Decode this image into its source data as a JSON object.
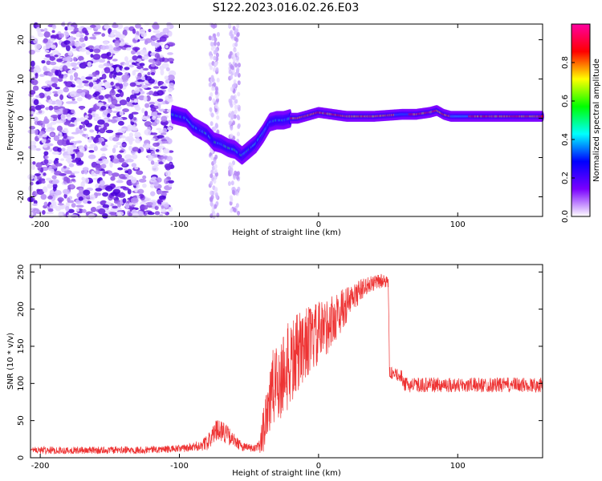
{
  "title": "S122.2023.016.02.26.E03",
  "chart_data": [
    {
      "type": "heatmap",
      "xlabel": "Height of straight line (km)",
      "ylabel": "Frequency (Hz)",
      "xlim": [
        -207,
        161
      ],
      "ylim": [
        -25,
        24
      ],
      "xticks": [
        -200,
        -100,
        0,
        100
      ],
      "yticks": [
        -20,
        -10,
        0,
        10,
        20
      ],
      "colorbar": {
        "label": "Normalized spectral amplitude",
        "range": [
          0,
          1
        ],
        "ticks": [
          0.0,
          0.2,
          0.4,
          0.6,
          0.8
        ],
        "tick_labels": [
          "0.0",
          "0.2",
          "0.4",
          "0.6",
          "0.8"
        ],
        "colors": [
          "#ffffff",
          "#7a00ff",
          "#0000ff",
          "#00ffff",
          "#00ff00",
          "#ffff00",
          "#ff0000",
          "#ff00a0"
        ]
      },
      "ridge": {
        "x": [
          -105,
          -95,
          -90,
          -85,
          -80,
          -75,
          -70,
          -65,
          -60,
          -55,
          -50,
          -45,
          -40,
          -35,
          -30,
          -25,
          -20,
          -15,
          -10,
          -5,
          0,
          10,
          20,
          40,
          60,
          70,
          80,
          85,
          90,
          95,
          100,
          110,
          120,
          140,
          161
        ],
        "y": [
          1,
          0,
          -2,
          -3,
          -4,
          -6,
          -6.5,
          -7.5,
          -8,
          -9.5,
          -8,
          -6.5,
          -4,
          -1,
          -0.5,
          -0.5,
          0,
          0,
          0.5,
          1,
          1.5,
          1,
          0.5,
          0.5,
          1,
          1,
          1.5,
          2,
          1,
          0.5,
          0.5,
          0.5,
          0.5,
          0.5,
          0.5
        ]
      },
      "noise_region": {
        "x": [
          -207,
          -105
        ],
        "y": [
          -25,
          24
        ]
      }
    },
    {
      "type": "line",
      "xlabel": "Height of straight line (km)",
      "ylabel": "SNR (10 * v/v)",
      "xlim": [
        -207,
        161
      ],
      "ylim": [
        0,
        260
      ],
      "xticks": [
        -200,
        -100,
        0,
        100
      ],
      "yticks": [
        0,
        50,
        100,
        150,
        200,
        250
      ],
      "color": "#ee3333",
      "envelope": {
        "x": [
          -207,
          -180,
          -150,
          -120,
          -100,
          -90,
          -80,
          -72,
          -68,
          -62,
          -55,
          -45,
          -42,
          -38,
          -35,
          -30,
          -25,
          -20,
          -15,
          -10,
          -5,
          0,
          5,
          10,
          15,
          20,
          25,
          30,
          35,
          40,
          45,
          50,
          51,
          55,
          60,
          61,
          70,
          80,
          100,
          120,
          140,
          161
        ],
        "values": [
          10,
          10,
          10,
          11,
          12,
          14,
          20,
          40,
          35,
          25,
          15,
          12,
          15,
          60,
          80,
          100,
          115,
          125,
          140,
          155,
          160,
          165,
          175,
          185,
          195,
          205,
          215,
          225,
          232,
          235,
          238,
          238,
          115,
          112,
          110,
          98,
          98,
          98,
          98,
          98,
          98,
          98
        ],
        "noise": [
          5,
          5,
          5,
          5,
          5,
          6,
          10,
          15,
          15,
          10,
          6,
          6,
          10,
          50,
          55,
          60,
          60,
          60,
          55,
          50,
          45,
          45,
          40,
          35,
          30,
          25,
          20,
          15,
          12,
          10,
          10,
          10,
          8,
          8,
          8,
          10,
          10,
          10,
          10,
          10,
          10,
          10
        ]
      }
    }
  ]
}
